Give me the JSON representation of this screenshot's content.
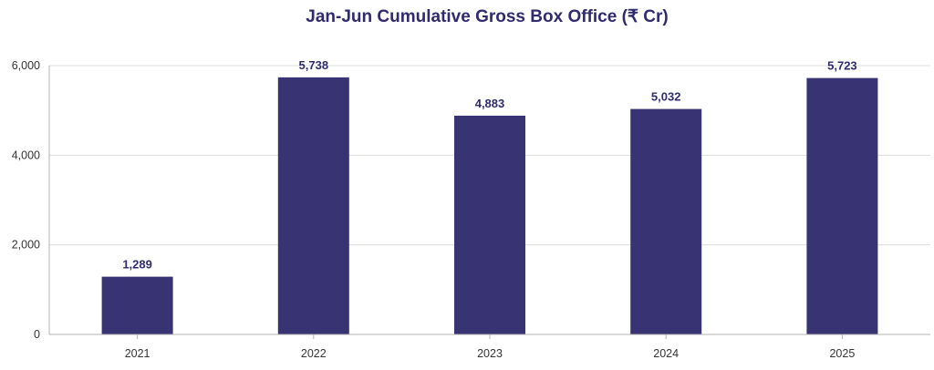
{
  "chart_data": {
    "type": "bar",
    "title": "Jan-Jun Cumulative Gross Box Office (₹ Cr)",
    "xlabel": "",
    "ylabel": "",
    "categories": [
      "2021",
      "2022",
      "2023",
      "2024",
      "2025"
    ],
    "values": [
      1289,
      5738,
      4883,
      5032,
      5723
    ],
    "data_labels": [
      "1,289",
      "5,738",
      "4,883",
      "5,032",
      "5,723"
    ],
    "ylim": [
      0,
      6000
    ],
    "yticks": [
      0,
      2000,
      4000,
      6000
    ],
    "ytick_labels": [
      "0",
      "2,000",
      "4,000",
      "6,000"
    ],
    "grid": true,
    "legend": "none",
    "colors": {
      "bar": "#383372",
      "title": "#2f2b6e",
      "data_label": "#2f2b6e",
      "gridline": "#dcdcdc",
      "axis": "#b3b3b3"
    }
  }
}
